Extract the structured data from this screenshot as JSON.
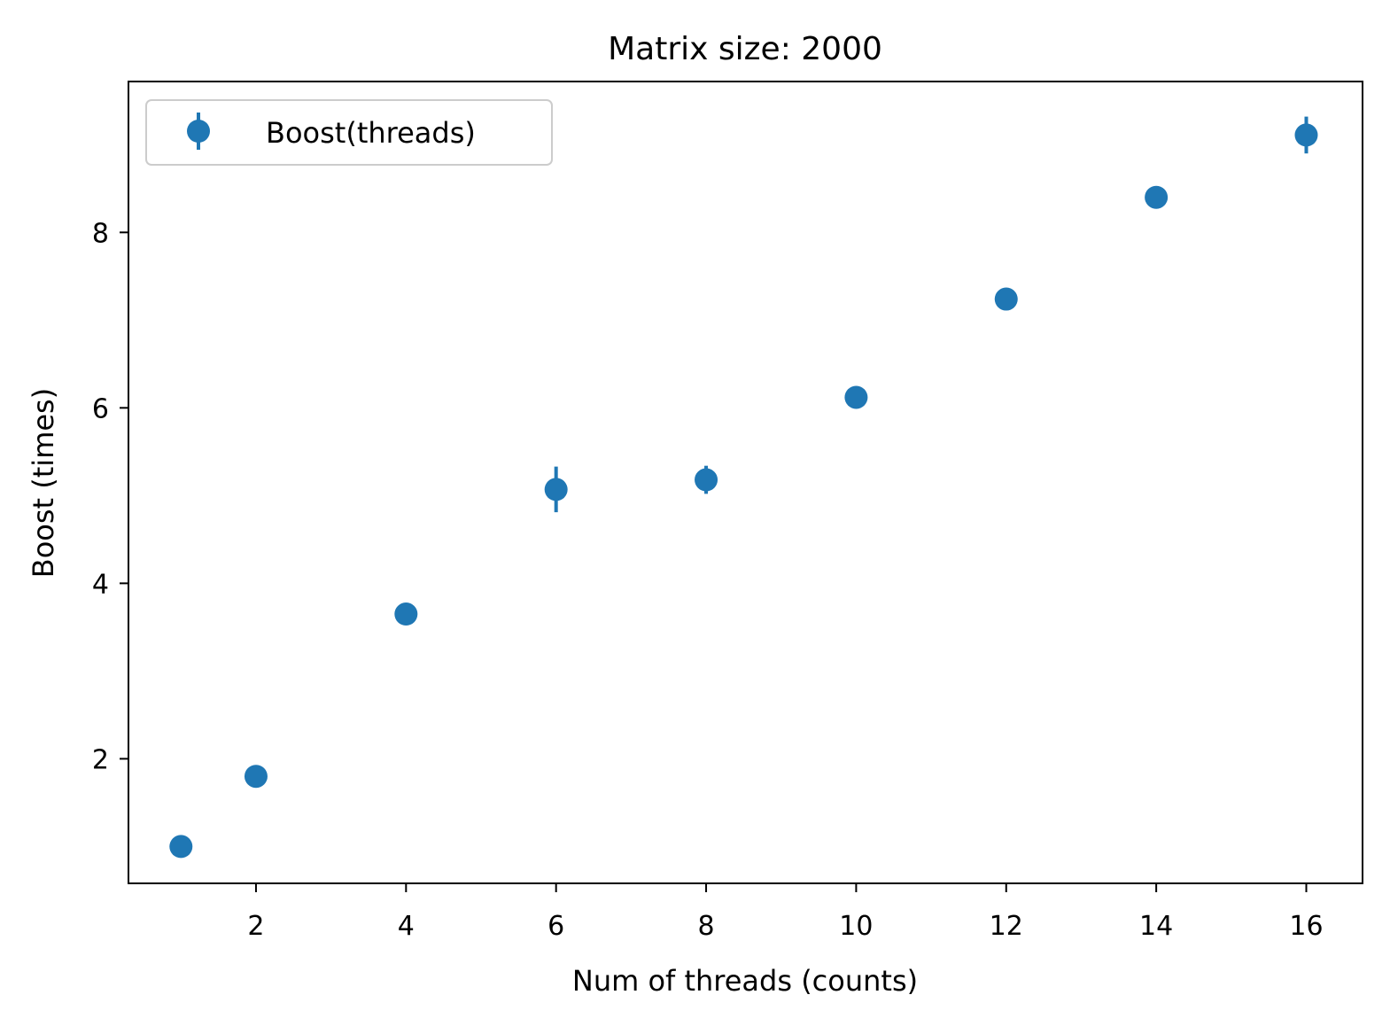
{
  "chart_data": {
    "type": "scatter",
    "title": "Matrix size: 2000",
    "xlabel": "Num of threads (counts)",
    "ylabel": "Boost (times)",
    "xlim": [
      0.3,
      16.75
    ],
    "ylim": [
      0.58,
      9.72
    ],
    "xticks": [
      2,
      4,
      6,
      8,
      10,
      12,
      14,
      16
    ],
    "yticks": [
      2,
      4,
      6,
      8
    ],
    "grid": false,
    "legend_position": "upper-left",
    "color": "#1f77b4",
    "series": [
      {
        "name": "Boost(threads)",
        "marker": "circle",
        "error_bars": "vertical",
        "x": [
          1,
          2,
          4,
          6,
          8,
          10,
          12,
          14,
          16
        ],
        "y": [
          1.0,
          1.8,
          3.65,
          5.07,
          5.18,
          6.12,
          7.24,
          8.4,
          9.11
        ],
        "yerr": [
          0.0,
          0.0,
          0.12,
          0.26,
          0.16,
          0.0,
          0.0,
          0.0,
          0.21
        ]
      }
    ]
  }
}
